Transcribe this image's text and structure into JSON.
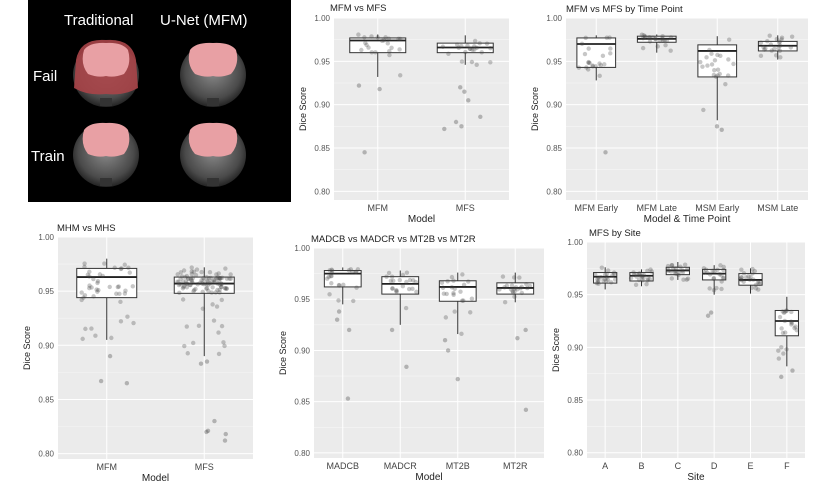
{
  "mri_panel": {
    "col_labels": [
      "Traditional",
      "U-Net (MFM)"
    ],
    "row_labels": [
      "Fail",
      "Train"
    ]
  },
  "chart_data": [
    {
      "type": "box",
      "title": "MFM vs MFS",
      "xlabel": "Model",
      "ylabel": "Dice Score",
      "ylim": [
        0.79,
        1.0
      ],
      "yticks": [
        "0.80",
        "0.85",
        "0.90",
        "0.95",
        "1.00"
      ],
      "grid": true,
      "categories": [
        "MFM",
        "MFS"
      ],
      "boxes": [
        {
          "q1": 0.96,
          "median": 0.974,
          "q3": 0.977,
          "lower": 0.932,
          "upper": 0.981
        },
        {
          "q1": 0.96,
          "median": 0.966,
          "q3": 0.971,
          "lower": 0.946,
          "upper": 0.98
        }
      ],
      "outliers": [
        [
          0.918,
          0.922,
          0.845
        ],
        [
          0.92,
          0.915,
          0.905,
          0.886,
          0.88,
          0.875,
          0.872
        ]
      ]
    },
    {
      "type": "box",
      "title": "MFM vs MFS by Time Point",
      "xlabel": "Model & Time Point",
      "ylabel": "Dice Score",
      "ylim": [
        0.79,
        1.0
      ],
      "yticks": [
        "0.80",
        "0.85",
        "0.90",
        "0.95",
        "1.00"
      ],
      "grid": true,
      "categories": [
        "MFM Early",
        "MFM Late",
        "MSM Early",
        "MSM Late"
      ],
      "boxes": [
        {
          "q1": 0.943,
          "median": 0.97,
          "q3": 0.977,
          "lower": 0.928,
          "upper": 0.98
        },
        {
          "q1": 0.972,
          "median": 0.976,
          "q3": 0.979,
          "lower": 0.96,
          "upper": 0.981
        },
        {
          "q1": 0.932,
          "median": 0.962,
          "q3": 0.969,
          "lower": 0.882,
          "upper": 0.979
        },
        {
          "q1": 0.962,
          "median": 0.968,
          "q3": 0.973,
          "lower": 0.952,
          "upper": 0.98
        }
      ],
      "outliers": [
        [
          0.845
        ],
        [],
        [
          0.875,
          0.871
        ],
        []
      ]
    },
    {
      "type": "box",
      "title": "MHM vs MHS",
      "xlabel": "Model",
      "ylabel": "Dice Score",
      "ylim": [
        0.795,
        1.0
      ],
      "yticks": [
        "0.80",
        "0.85",
        "0.90",
        "0.95",
        "1.00"
      ],
      "grid": true,
      "categories": [
        "MFM",
        "MFS"
      ],
      "boxes": [
        {
          "q1": 0.944,
          "median": 0.963,
          "q3": 0.971,
          "lower": 0.905,
          "upper": 0.98
        },
        {
          "q1": 0.948,
          "median": 0.957,
          "q3": 0.963,
          "lower": 0.89,
          "upper": 0.972
        }
      ],
      "outliers": [
        [
          0.89,
          0.865,
          0.867
        ],
        [
          0.885,
          0.883,
          0.83,
          0.821,
          0.818,
          0.812,
          0.82
        ]
      ]
    },
    {
      "type": "box",
      "title": "MADCB vs MADCR vs MT2B vs MT2R",
      "xlabel": "Model",
      "ylabel": "Dice Score",
      "ylim": [
        0.795,
        1.0
      ],
      "yticks": [
        "0.80",
        "0.85",
        "0.90",
        "0.95",
        "1.00"
      ],
      "grid": true,
      "categories": [
        "MADCB",
        "MADCR",
        "MT2B",
        "MT2R"
      ],
      "boxes": [
        {
          "q1": 0.962,
          "median": 0.975,
          "q3": 0.978,
          "lower": 0.945,
          "upper": 0.981
        },
        {
          "q1": 0.955,
          "median": 0.965,
          "q3": 0.972,
          "lower": 0.925,
          "upper": 0.978
        },
        {
          "q1": 0.948,
          "median": 0.962,
          "q3": 0.968,
          "lower": 0.916,
          "upper": 0.976
        },
        {
          "q1": 0.955,
          "median": 0.961,
          "q3": 0.966,
          "lower": 0.947,
          "upper": 0.976
        }
      ],
      "outliers": [
        [
          0.938,
          0.93,
          0.92,
          0.853
        ],
        [
          0.92,
          0.884
        ],
        [
          0.91,
          0.9,
          0.872
        ],
        [
          0.92,
          0.912,
          0.842
        ]
      ]
    },
    {
      "type": "box",
      "title": "MFS by Site",
      "xlabel": "Site",
      "ylabel": "Dice Score",
      "ylim": [
        0.795,
        1.0
      ],
      "yticks": [
        "0.80",
        "0.85",
        "0.90",
        "0.95",
        "1.00"
      ],
      "grid": true,
      "categories": [
        "A",
        "B",
        "C",
        "D",
        "E",
        "F"
      ],
      "boxes": [
        {
          "q1": 0.961,
          "median": 0.967,
          "q3": 0.971,
          "lower": 0.955,
          "upper": 0.976
        },
        {
          "q1": 0.963,
          "median": 0.968,
          "q3": 0.971,
          "lower": 0.958,
          "upper": 0.974
        },
        {
          "q1": 0.969,
          "median": 0.973,
          "q3": 0.976,
          "lower": 0.964,
          "upper": 0.981
        },
        {
          "q1": 0.964,
          "median": 0.97,
          "q3": 0.974,
          "lower": 0.95,
          "upper": 0.978
        },
        {
          "q1": 0.959,
          "median": 0.964,
          "q3": 0.97,
          "lower": 0.951,
          "upper": 0.975
        },
        {
          "q1": 0.911,
          "median": 0.925,
          "q3": 0.935,
          "lower": 0.882,
          "upper": 0.948
        }
      ],
      "outliers": [
        [],
        [],
        [],
        [
          0.93,
          0.933
        ],
        [],
        [
          0.878,
          0.872
        ]
      ]
    }
  ]
}
